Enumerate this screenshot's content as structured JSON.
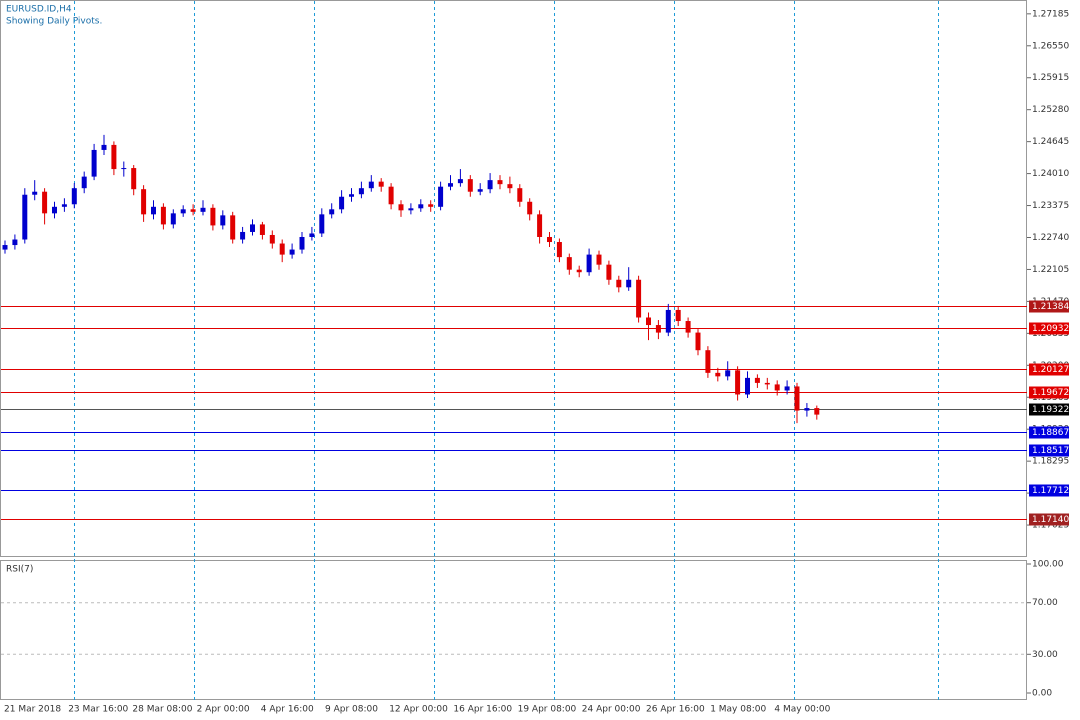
{
  "chart_data": {
    "type": "candlestick",
    "title": "EURUSD.ID,H4",
    "subtitle": "Showing Daily Pivots.",
    "categories": [
      "21 Mar 2018",
      "23 Mar 16:00",
      "28 Mar 08:00",
      "2 Apr 00:00",
      "4 Apr 16:00",
      "9 Apr 08:00",
      "12 Apr 00:00",
      "16 Apr 16:00",
      "19 Apr 08:00",
      "24 Apr 00:00",
      "26 Apr 16:00",
      "1 May 08:00",
      "4 May 00:00"
    ],
    "open": [
      1.225,
      1.2259,
      1.227,
      1.2359,
      1.2365,
      1.2322,
      1.2335,
      1.234,
      1.2372,
      1.2395,
      1.2448,
      1.2458,
      1.241,
      1.2412,
      1.237,
      1.232,
      1.2335,
      1.23,
      1.2322,
      1.233,
      1.2325,
      1.2333,
      1.2298,
      1.2318,
      1.227,
      1.2285,
      1.23,
      1.2279,
      1.2262,
      1.224,
      1.225,
      1.2275,
      1.2282,
      1.232,
      1.233,
      1.2355,
      1.236,
      1.2372,
      1.2385,
      1.2375,
      1.234,
      1.2328,
      1.2332,
      1.234,
      1.2335,
      1.2375,
      1.2382,
      1.239,
      1.2365,
      1.237,
      1.2388,
      1.238,
      1.2372,
      1.2345,
      1.232,
      1.2275,
      1.2265,
      1.2235,
      1.221,
      1.2205,
      1.224,
      1.222,
      1.219,
      1.2175,
      1.219,
      1.2115,
      1.21,
      1.2085,
      1.213,
      1.2108,
      1.2085,
      1.205,
      1.2005,
      1.1998,
      1.201,
      1.1962,
      1.1995,
      1.1985,
      1.1982,
      1.197,
      1.1978,
      1.193,
      1.1935
    ],
    "high": [
      1.2268,
      1.228,
      1.2372,
      1.2388,
      1.2372,
      1.2345,
      1.2352,
      1.2382,
      1.2405,
      1.246,
      1.2478,
      1.2465,
      1.2425,
      1.2418,
      1.2378,
      1.2348,
      1.2342,
      1.233,
      1.2338,
      1.234,
      1.2348,
      1.234,
      1.2328,
      1.2325,
      1.2295,
      1.231,
      1.2305,
      1.2288,
      1.227,
      1.2262,
      1.2285,
      1.2295,
      1.2332,
      1.2342,
      1.2368,
      1.2372,
      1.2385,
      1.2398,
      1.2392,
      1.2382,
      1.2348,
      1.2342,
      1.235,
      1.2348,
      1.2385,
      1.2398,
      1.241,
      1.2398,
      1.2382,
      1.2402,
      1.2398,
      1.2395,
      1.238,
      1.2352,
      1.2328,
      1.2285,
      1.2272,
      1.2242,
      1.2218,
      1.2252,
      1.2248,
      1.2228,
      1.2198,
      1.2215,
      1.2198,
      1.2125,
      1.211,
      1.2142,
      1.2138,
      1.2115,
      1.2092,
      1.2058,
      1.2015,
      1.2028,
      1.2018,
      1.2008,
      1.2002,
      1.1995,
      1.199,
      1.199,
      1.1985,
      1.1945,
      1.194
    ],
    "low": [
      1.2242,
      1.225,
      1.2262,
      1.2348,
      1.23,
      1.2312,
      1.2325,
      1.2332,
      1.2362,
      1.2388,
      1.2438,
      1.2398,
      1.2395,
      1.2358,
      1.2305,
      1.231,
      1.229,
      1.2292,
      1.2315,
      1.2318,
      1.2318,
      1.2288,
      1.229,
      1.2262,
      1.2262,
      1.2278,
      1.227,
      1.2252,
      1.2225,
      1.2232,
      1.2242,
      1.2268,
      1.2275,
      1.2312,
      1.2322,
      1.2345,
      1.2352,
      1.2365,
      1.2365,
      1.233,
      1.2315,
      1.232,
      1.2325,
      1.2325,
      1.2328,
      1.2368,
      1.2375,
      1.2355,
      1.2358,
      1.2362,
      1.237,
      1.2362,
      1.2335,
      1.2308,
      1.2262,
      1.2255,
      1.2225,
      1.22,
      1.2195,
      1.2198,
      1.221,
      1.218,
      1.2165,
      1.2168,
      1.2105,
      1.207,
      1.2072,
      1.2078,
      1.2098,
      1.2075,
      1.204,
      1.1995,
      1.1988,
      1.199,
      1.195,
      1.1955,
      1.1975,
      1.1972,
      1.196,
      1.1962,
      1.1905,
      1.1918,
      1.1912
    ],
    "close": [
      1.2259,
      1.227,
      1.2359,
      1.2365,
      1.2322,
      1.2335,
      1.234,
      1.2372,
      1.2395,
      1.2448,
      1.2458,
      1.241,
      1.2412,
      1.237,
      1.232,
      1.2335,
      1.23,
      1.2322,
      1.233,
      1.2325,
      1.2333,
      1.2298,
      1.2318,
      1.227,
      1.2285,
      1.23,
      1.2279,
      1.2262,
      1.224,
      1.225,
      1.2275,
      1.2282,
      1.232,
      1.233,
      1.2355,
      1.236,
      1.2372,
      1.2385,
      1.2375,
      1.234,
      1.2328,
      1.2332,
      1.234,
      1.2335,
      1.2375,
      1.2382,
      1.239,
      1.2365,
      1.237,
      1.2388,
      1.238,
      1.2372,
      1.2345,
      1.232,
      1.2275,
      1.2265,
      1.2235,
      1.221,
      1.2205,
      1.224,
      1.222,
      1.219,
      1.2175,
      1.219,
      1.2115,
      1.21,
      1.2085,
      1.213,
      1.2108,
      1.2085,
      1.205,
      1.2005,
      1.1998,
      1.201,
      1.1962,
      1.1995,
      1.1985,
      1.1982,
      1.197,
      1.1978,
      1.193,
      1.1935,
      1.1922
    ],
    "up_color": "#0000cd",
    "down_color": "#e00000",
    "ylim": [
      1.1641,
      1.2746
    ],
    "yticks": [
      1.27185,
      {
        "value": 1.2655,
        "label": "1.26550"
      },
      1.25915,
      {
        "value": 1.2528,
        "label": "1.25280"
      },
      1.24645,
      {
        "value": 1.2401,
        "label": "1.24010"
      },
      1.23375,
      {
        "value": 1.2274,
        "label": "1.22740"
      },
      1.22105,
      {
        "value": 1.2147,
        "label": "1.21470"
      },
      1.20835,
      {
        "value": 1.202,
        "label": "1.20200"
      },
      1.19565,
      {
        "value": 1.1893,
        "label": "1.18930"
      },
      1.18295,
      {
        "value": 1.1766,
        "label": "1.17660"
      },
      1.17025
    ],
    "grid": true,
    "pivots": {
      "values": [
        1.21384,
        1.20932,
        1.20127,
        1.19672,
        1.19322,
        1.18867,
        1.18517,
        1.17712,
        1.1714
      ],
      "value_labels": [
        "1.21384",
        "1.20932",
        "1.20127",
        "1.19672",
        "1.19322",
        "1.18867",
        "1.18517",
        "1.17712",
        "1.17140"
      ],
      "line_colors": [
        "#e00000",
        "#e00000",
        "#e00000",
        "#e00000",
        "#555555",
        "#0000e0",
        "#0000e0",
        "#0000e0",
        "#e00000"
      ],
      "label_colors": [
        "#b01818",
        "#e00000",
        "#e00000",
        "#e00000",
        "#000000",
        "#0000e0",
        "#0000e0",
        "#0000e0",
        "#a02020"
      ]
    },
    "rsi": {
      "title": "RSI(7)",
      "ylim": [
        0,
        100
      ],
      "yticks": [
        {
          "value": 100,
          "label": "100.00"
        },
        {
          "value": 70,
          "label": "70.00"
        },
        {
          "value": 30,
          "label": "30.00"
        },
        {
          "value": 0,
          "label": "0.00"
        }
      ]
    }
  }
}
